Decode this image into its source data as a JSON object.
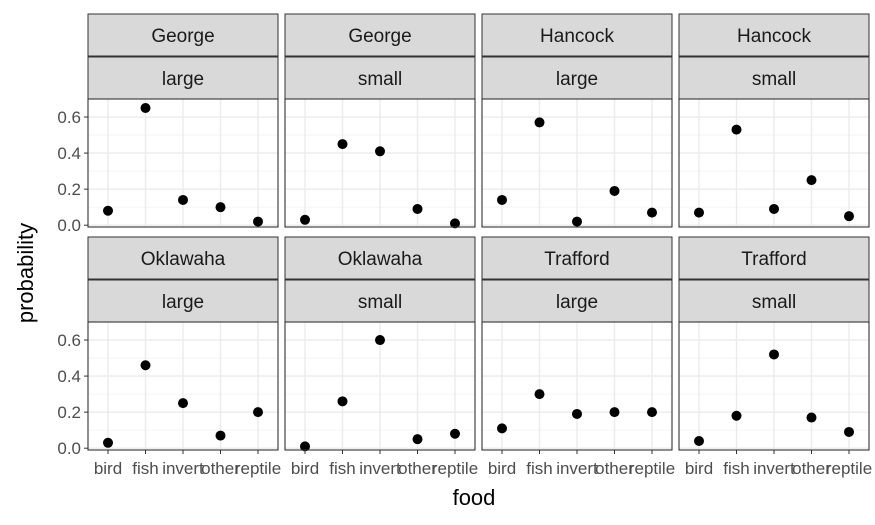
{
  "chart_data": {
    "type": "scatter",
    "xlabel": "food",
    "ylabel": "probability",
    "categories": [
      "bird",
      "fish",
      "invert",
      "other",
      "reptile"
    ],
    "ylim": [
      -0.01,
      0.7
    ],
    "yticks": [
      0.0,
      0.2,
      0.4,
      0.6
    ],
    "ytick_labels": [
      "0.0",
      "0.2",
      "0.4",
      "0.6"
    ],
    "grid": true,
    "facet_rows": 2,
    "facet_cols": 4,
    "panels": [
      {
        "lake": "George",
        "size": "large",
        "values": [
          0.08,
          0.65,
          0.14,
          0.1,
          0.02
        ]
      },
      {
        "lake": "George",
        "size": "small",
        "values": [
          0.03,
          0.45,
          0.41,
          0.09,
          0.01
        ]
      },
      {
        "lake": "Hancock",
        "size": "large",
        "values": [
          0.14,
          0.57,
          0.02,
          0.19,
          0.07
        ]
      },
      {
        "lake": "Hancock",
        "size": "small",
        "values": [
          0.07,
          0.53,
          0.09,
          0.25,
          0.05
        ]
      },
      {
        "lake": "Oklawaha",
        "size": "large",
        "values": [
          0.03,
          0.46,
          0.25,
          0.07,
          0.2
        ]
      },
      {
        "lake": "Oklawaha",
        "size": "small",
        "values": [
          0.01,
          0.26,
          0.6,
          0.05,
          0.08
        ]
      },
      {
        "lake": "Trafford",
        "size": "large",
        "values": [
          0.11,
          0.3,
          0.19,
          0.2,
          0.2
        ]
      },
      {
        "lake": "Trafford",
        "size": "small",
        "values": [
          0.04,
          0.18,
          0.52,
          0.17,
          0.09
        ]
      }
    ]
  }
}
